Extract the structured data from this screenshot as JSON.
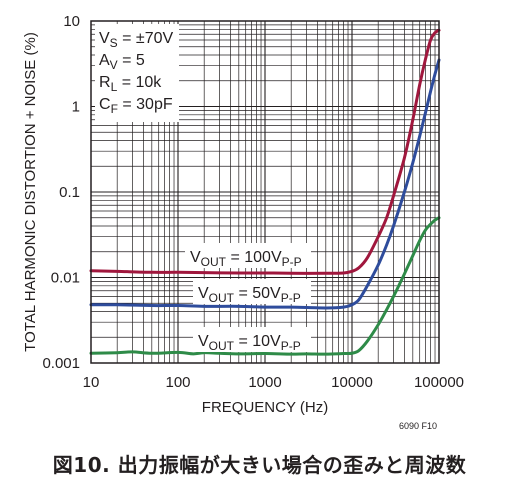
{
  "chart_data": {
    "type": "line",
    "xscale": "log",
    "yscale": "log",
    "xlim": [
      10,
      100000
    ],
    "ylim": [
      0.001,
      10
    ],
    "grid": true,
    "xlabel": "FREQUENCY (Hz)",
    "ylabel": "TOTAL HARMONIC DISTORTION + NOISE (%)",
    "xticks": [
      "10",
      "100",
      "1000",
      "10000",
      "100000"
    ],
    "yticks": [
      "0.001",
      "0.01",
      "0.1",
      "1",
      "10"
    ],
    "conditions": [
      {
        "main": "V",
        "sub": "S",
        "rest": " = ±70V"
      },
      {
        "main": "A",
        "sub": "V",
        "rest": " = 5"
      },
      {
        "main": "R",
        "sub": "L",
        "rest": " = 10k"
      },
      {
        "main": "C",
        "sub": "F",
        "rest": " = 30pF"
      }
    ],
    "note": "6090 F10",
    "series": [
      {
        "name": "VOUT = 100VP-P",
        "label_parts": {
          "a": "V",
          "a_sub": "OUT",
          "b": " = 100V",
          "b_sub": "P-P"
        },
        "color": "#a0173d",
        "x": [
          10,
          20,
          50,
          100,
          200,
          500,
          1000,
          2000,
          5000,
          8000,
          10000,
          12000,
          15000,
          20000,
          25000,
          30000,
          40000,
          50000,
          60000,
          70000,
          80000,
          90000,
          100000
        ],
        "y": [
          0.012,
          0.0118,
          0.0115,
          0.0115,
          0.0114,
          0.0113,
          0.0113,
          0.0112,
          0.0112,
          0.0113,
          0.0118,
          0.013,
          0.017,
          0.03,
          0.05,
          0.09,
          0.25,
          0.7,
          1.8,
          3.6,
          6.0,
          7.3,
          7.8
        ]
      },
      {
        "name": "VOUT = 50VP-P",
        "label_parts": {
          "a": "V",
          "a_sub": "OUT",
          "b": " = 50V",
          "b_sub": "P-P"
        },
        "color": "#2e4c9c",
        "x": [
          10,
          20,
          50,
          100,
          200,
          500,
          1000,
          2000,
          5000,
          8000,
          10000,
          12000,
          15000,
          20000,
          25000,
          30000,
          40000,
          50000,
          60000,
          70000,
          80000,
          90000,
          100000
        ],
        "y": [
          0.0048,
          0.0048,
          0.0047,
          0.0047,
          0.0046,
          0.0046,
          0.0045,
          0.0045,
          0.0044,
          0.0045,
          0.0048,
          0.0055,
          0.008,
          0.014,
          0.024,
          0.04,
          0.1,
          0.22,
          0.45,
          0.85,
          1.5,
          2.4,
          3.5
        ]
      },
      {
        "name": "VOUT = 10VP-P",
        "label_parts": {
          "a": "V",
          "a_sub": "OUT",
          "b": " = 10V",
          "b_sub": "P-P"
        },
        "color": "#2e8b48",
        "x": [
          10,
          20,
          30,
          50,
          100,
          150,
          200,
          300,
          500,
          1000,
          2000,
          3000,
          5000,
          8000,
          10000,
          12000,
          15000,
          20000,
          25000,
          30000,
          40000,
          50000,
          60000,
          70000,
          80000,
          90000,
          100000
        ],
        "y": [
          0.0013,
          0.00132,
          0.00135,
          0.0013,
          0.00133,
          0.00128,
          0.00132,
          0.0013,
          0.00128,
          0.00129,
          0.00127,
          0.00128,
          0.00127,
          0.00129,
          0.0013,
          0.0014,
          0.0018,
          0.0028,
          0.0042,
          0.006,
          0.011,
          0.018,
          0.027,
          0.036,
          0.042,
          0.047,
          0.05
        ]
      }
    ]
  },
  "caption": "図10. 出力振幅が大きい場合の歪みと周波数"
}
